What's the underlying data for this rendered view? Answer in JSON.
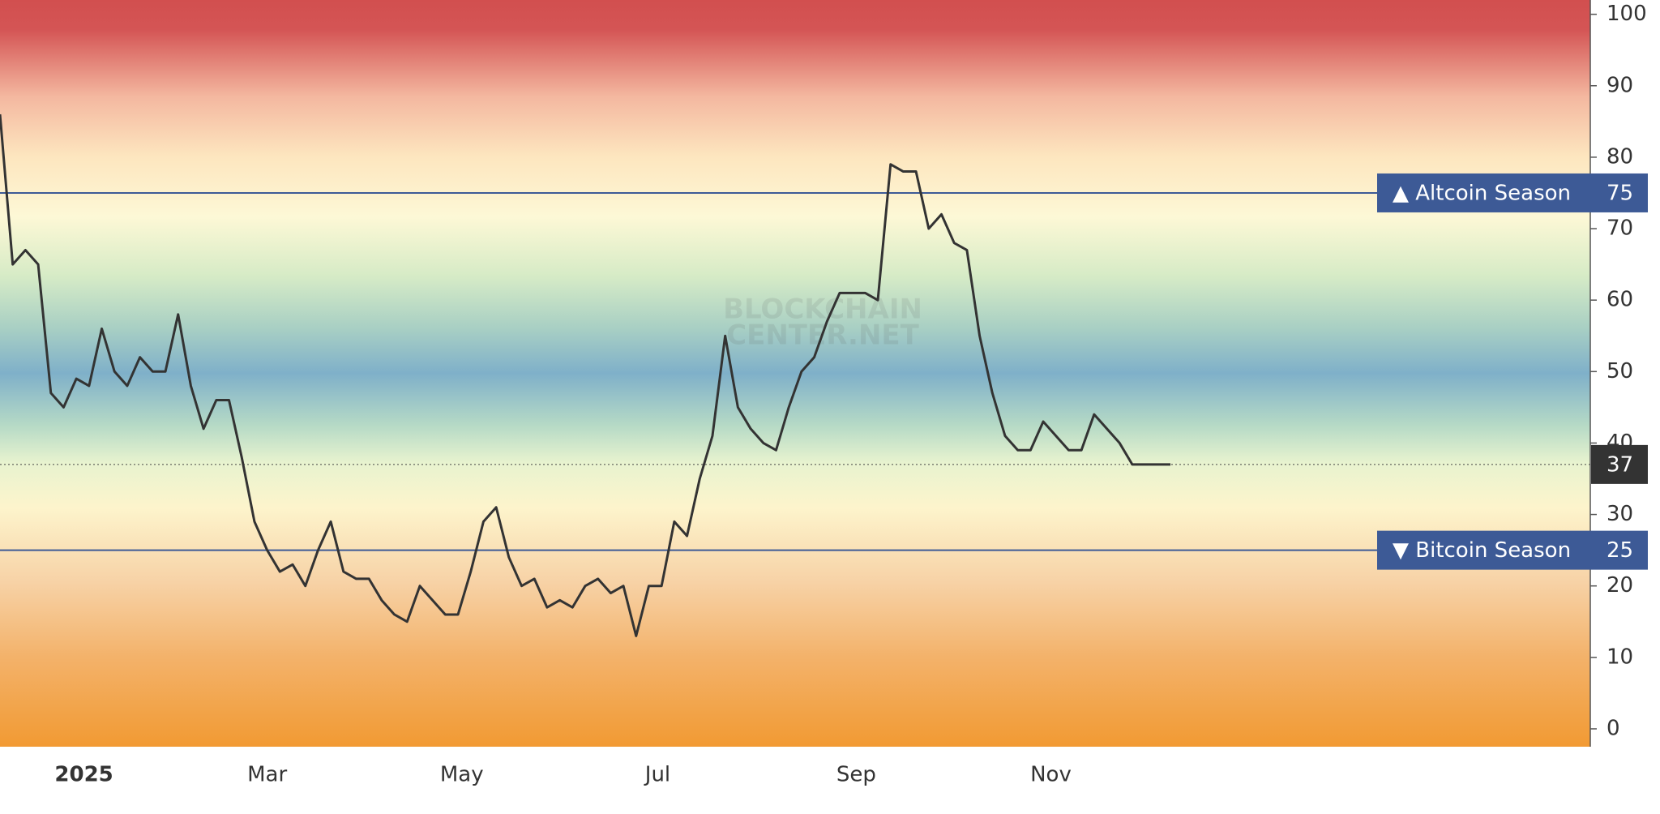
{
  "chart_data": {
    "type": "line",
    "values": [
      86,
      65,
      67,
      65,
      47,
      45,
      49,
      48,
      56,
      50,
      48,
      52,
      50,
      50,
      58,
      48,
      42,
      46,
      46,
      38,
      29,
      25,
      22,
      23,
      20,
      25,
      29,
      22,
      21,
      21,
      18,
      16,
      15,
      20,
      18,
      16,
      16,
      22,
      29,
      31,
      24,
      20,
      21,
      17,
      18,
      17,
      20,
      21,
      19,
      20,
      13,
      20,
      20,
      29,
      27,
      35,
      41,
      55,
      45,
      42,
      40,
      39,
      45,
      50,
      52,
      57,
      61,
      61,
      61,
      60,
      79,
      78,
      78,
      70,
      72,
      68,
      67,
      55,
      47,
      41,
      39,
      39,
      43,
      41,
      39,
      39,
      44,
      42,
      40,
      37,
      37,
      37,
      37
    ],
    "color": "#333333",
    "xlim": [
      0,
      125
    ],
    "xticks": [
      {
        "value": 6.6,
        "label": "2025"
      },
      {
        "value": 21,
        "label": "Mar"
      },
      {
        "value": 36.3,
        "label": "May"
      },
      {
        "value": 51.7,
        "label": "Jul"
      },
      {
        "value": 67.3,
        "label": "Sep"
      },
      {
        "value": 82.6,
        "label": "Nov"
      }
    ],
    "ylim": [
      -2.5,
      102
    ],
    "yticks": [
      0,
      10,
      20,
      30,
      40,
      50,
      60,
      70,
      80,
      90,
      100
    ],
    "annotations": [
      {
        "label": "▲ Altcoin Season",
        "value": 75
      },
      {
        "label": "▼ Bitcoin Season",
        "value": 25
      }
    ],
    "current_value": 37,
    "watermark": [
      "BLOCKCHAIN",
      "CENTER.NET"
    ]
  }
}
